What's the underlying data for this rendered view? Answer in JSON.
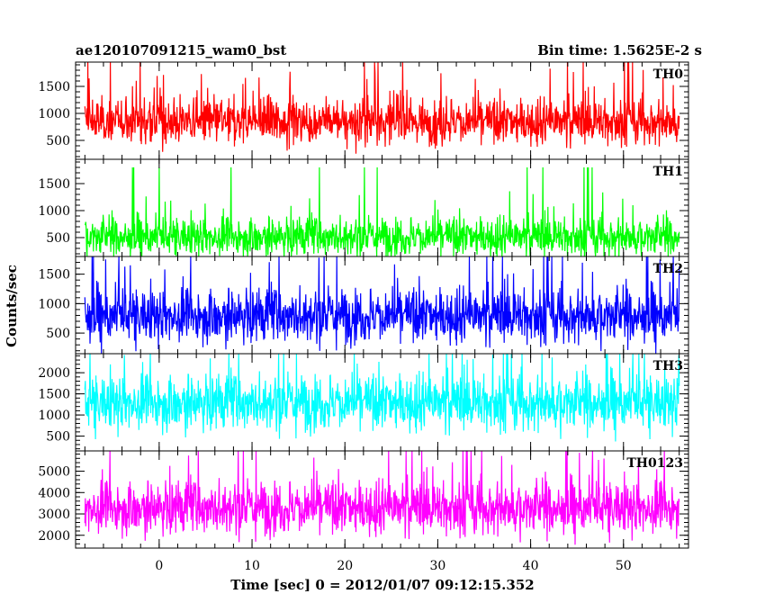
{
  "chart_data": {
    "type": "line",
    "title": "ae120107091215_wam0_bst",
    "subtitle": "Bin time: 1.5625E-2 s",
    "xlabel": "Time [sec] 0 = 2012/01/07 09:12:15.352",
    "ylabel": "Counts/sec",
    "xlim": [
      -9,
      57
    ],
    "x_tick_labels": [
      "0",
      "10",
      "20",
      "30",
      "40",
      "50"
    ],
    "x_ticks": [
      0,
      10,
      20,
      30,
      40,
      50
    ],
    "data_x_range": [
      -8,
      56
    ],
    "grid": false,
    "panels": [
      {
        "name": "TH0",
        "color": "#ff0000",
        "ylim": [
          150,
          1950
        ],
        "yticks": [
          500,
          1000,
          1500
        ],
        "ytick_labels": [
          "500",
          "1000",
          "1500"
        ],
        "mean": 850,
        "noise": 210,
        "min_floor": 200,
        "spikes": 1950
      },
      {
        "name": "TH1",
        "color": "#00ff00",
        "ylim": [
          150,
          1950
        ],
        "yticks": [
          500,
          1000,
          1500
        ],
        "ytick_labels": [
          "500",
          "1000",
          "1500"
        ],
        "mean": 520,
        "noise": 180,
        "min_floor": 150,
        "spikes": 1800
      },
      {
        "name": "TH2",
        "color": "#0000ff",
        "ylim": [
          150,
          1800
        ],
        "yticks": [
          500,
          1000,
          1500
        ],
        "ytick_labels": [
          "500",
          "1000",
          "1500"
        ],
        "mean": 800,
        "noise": 230,
        "min_floor": 150,
        "spikes": 1800
      },
      {
        "name": "TH3",
        "color": "#00ffff",
        "ylim": [
          150,
          2450
        ],
        "yticks": [
          500,
          1000,
          1500,
          2000
        ],
        "ytick_labels": [
          "500",
          "1000",
          "1500",
          "2000"
        ],
        "mean": 1300,
        "noise": 330,
        "min_floor": 300,
        "spikes": 2450
      },
      {
        "name": "TH0123",
        "color": "#ff00ff",
        "ylim": [
          1400,
          5950
        ],
        "yticks": [
          2000,
          3000,
          4000,
          5000
        ],
        "ytick_labels": [
          "2000",
          "3000",
          "4000",
          "5000"
        ],
        "mean": 3300,
        "noise": 620,
        "min_floor": 1500,
        "spikes": 5950
      }
    ]
  }
}
